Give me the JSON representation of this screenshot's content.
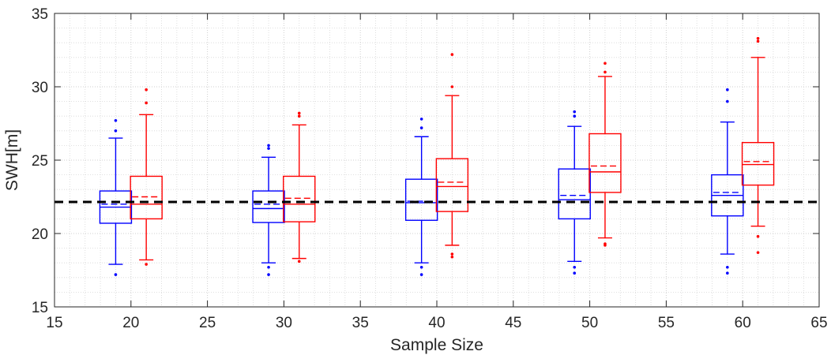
{
  "chart_data": {
    "type": "boxplot",
    "xlabel": "Sample Size",
    "ylabel": "SWH[m]",
    "xlim": [
      15,
      65
    ],
    "ylim": [
      15,
      35
    ],
    "xticks": [
      15,
      20,
      25,
      30,
      35,
      40,
      45,
      50,
      55,
      60,
      65
    ],
    "yticks": [
      15,
      20,
      25,
      30,
      35
    ],
    "grid": true,
    "minor_grid": true,
    "reference_line": {
      "y": 22.15,
      "style": "dashed",
      "color": "#000000"
    },
    "series": [
      {
        "color": "#0000ff",
        "boxes": [
          {
            "x": 19,
            "whisker_low": 17.9,
            "q1": 20.7,
            "median": 21.8,
            "mean": 22.0,
            "q3": 22.9,
            "whisker_high": 26.5,
            "outliers": [
              17.2,
              27.0,
              27.7
            ]
          },
          {
            "x": 29,
            "whisker_low": 18.0,
            "q1": 20.75,
            "median": 21.7,
            "mean": 22.0,
            "q3": 22.9,
            "whisker_high": 25.2,
            "outliers": [
              17.2,
              17.7,
              25.8,
              26.0
            ]
          },
          {
            "x": 39,
            "whisker_low": 18.0,
            "q1": 20.9,
            "median": 22.1,
            "mean": 22.2,
            "q3": 23.7,
            "whisker_high": 26.6,
            "outliers": [
              17.2,
              17.7,
              27.2,
              27.8
            ]
          },
          {
            "x": 49,
            "whisker_low": 18.1,
            "q1": 21.0,
            "median": 22.3,
            "mean": 22.6,
            "q3": 24.4,
            "whisker_high": 27.3,
            "outliers": [
              17.3,
              17.7,
              28.0,
              28.3
            ]
          },
          {
            "x": 59,
            "whisker_low": 18.6,
            "q1": 21.2,
            "median": 22.6,
            "mean": 22.8,
            "q3": 24.0,
            "whisker_high": 27.6,
            "outliers": [
              17.3,
              17.7,
              29.0,
              29.8
            ]
          }
        ]
      },
      {
        "color": "#ff0000",
        "boxes": [
          {
            "x": 21,
            "whisker_low": 18.2,
            "q1": 21.0,
            "median": 22.0,
            "mean": 22.5,
            "q3": 23.9,
            "whisker_high": 28.1,
            "outliers": [
              17.9,
              28.9,
              29.8
            ]
          },
          {
            "x": 31,
            "whisker_low": 18.3,
            "q1": 20.8,
            "median": 22.0,
            "mean": 22.4,
            "q3": 23.9,
            "whisker_high": 27.4,
            "outliers": [
              18.1,
              28.0,
              28.2
            ]
          },
          {
            "x": 41,
            "whisker_low": 19.2,
            "q1": 21.5,
            "median": 23.2,
            "mean": 23.5,
            "q3": 25.1,
            "whisker_high": 29.4,
            "outliers": [
              18.4,
              18.6,
              30.0,
              32.2
            ]
          },
          {
            "x": 51,
            "whisker_low": 19.7,
            "q1": 22.8,
            "median": 24.2,
            "mean": 24.6,
            "q3": 26.8,
            "whisker_high": 30.7,
            "outliers": [
              19.2,
              19.3,
              31.0,
              31.6
            ]
          },
          {
            "x": 61,
            "whisker_low": 20.5,
            "q1": 23.3,
            "median": 24.7,
            "mean": 24.9,
            "q3": 26.2,
            "whisker_high": 32.0,
            "outliers": [
              18.7,
              19.8,
              33.1,
              33.3
            ]
          }
        ]
      }
    ]
  }
}
